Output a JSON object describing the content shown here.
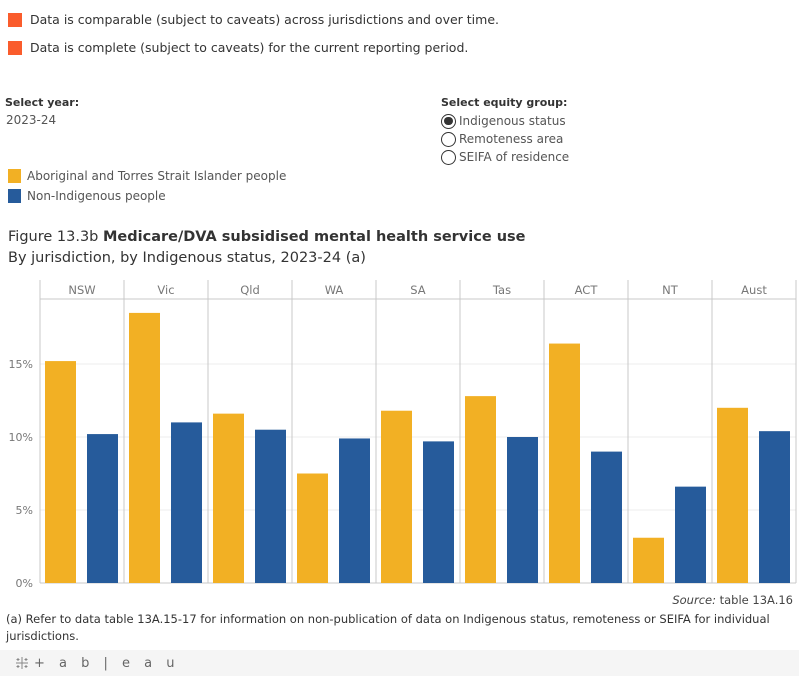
{
  "caveats": [
    {
      "text": "Data is comparable (subject to caveats) across jurisdictions and over time.",
      "color": "#fa5c2c"
    },
    {
      "text": "Data is complete (subject to caveats) for the current reporting period.",
      "color": "#fa5c2c"
    }
  ],
  "year_filter": {
    "label": "Select year:",
    "value": "2023-24"
  },
  "equity_filter": {
    "label": "Select equity group:",
    "options": [
      {
        "label": "Indigenous status",
        "selected": true
      },
      {
        "label": "Remoteness area",
        "selected": false
      },
      {
        "label": "SEIFA of residence",
        "selected": false
      }
    ]
  },
  "legend": [
    {
      "label": "Aboriginal and Torres Strait Islander people",
      "color": "#f2b024"
    },
    {
      "label": "Non-Indigenous people",
      "color": "#265b9b"
    }
  ],
  "figure": {
    "prefix": "Figure 13.3b",
    "title": "Medicare/DVA subsidised mental health service use",
    "subtitle": "By jurisdiction, by Indigenous status, 2023-24 (a)"
  },
  "source": {
    "label": "Source:",
    "text": " table 13A.16"
  },
  "footnote": "(a) Refer to data table 13A.15-17 for information on non-publication of data on Indigenous status, remoteness or SEIFA for individual jurisdictions.",
  "footer": {
    "brand": "+ a b | e a u"
  },
  "chart_data": {
    "type": "bar",
    "title": "Medicare/DVA subsidised mental health service use",
    "subtitle": "By jurisdiction, by Indigenous status, 2023-24 (a)",
    "xlabel": "",
    "ylabel": "",
    "categories": [
      "NSW",
      "Vic",
      "Qld",
      "WA",
      "SA",
      "Tas",
      "ACT",
      "NT",
      "Aust"
    ],
    "series": [
      {
        "name": "Aboriginal and Torres Strait Islander people",
        "color": "#f2b024",
        "values": [
          15.2,
          18.5,
          11.6,
          7.5,
          11.8,
          12.8,
          16.4,
          3.1,
          12.0
        ]
      },
      {
        "name": "Non-Indigenous people",
        "color": "#265b9b",
        "values": [
          10.2,
          11.0,
          10.5,
          9.9,
          9.7,
          10.0,
          9.0,
          6.6,
          10.4
        ]
      }
    ],
    "yticks": [
      0,
      5,
      10,
      15
    ],
    "ytick_labels": [
      "0%",
      "5%",
      "10%",
      "15%"
    ],
    "ylim": [
      0,
      20
    ],
    "grid": true,
    "legend_position": "top-left"
  }
}
